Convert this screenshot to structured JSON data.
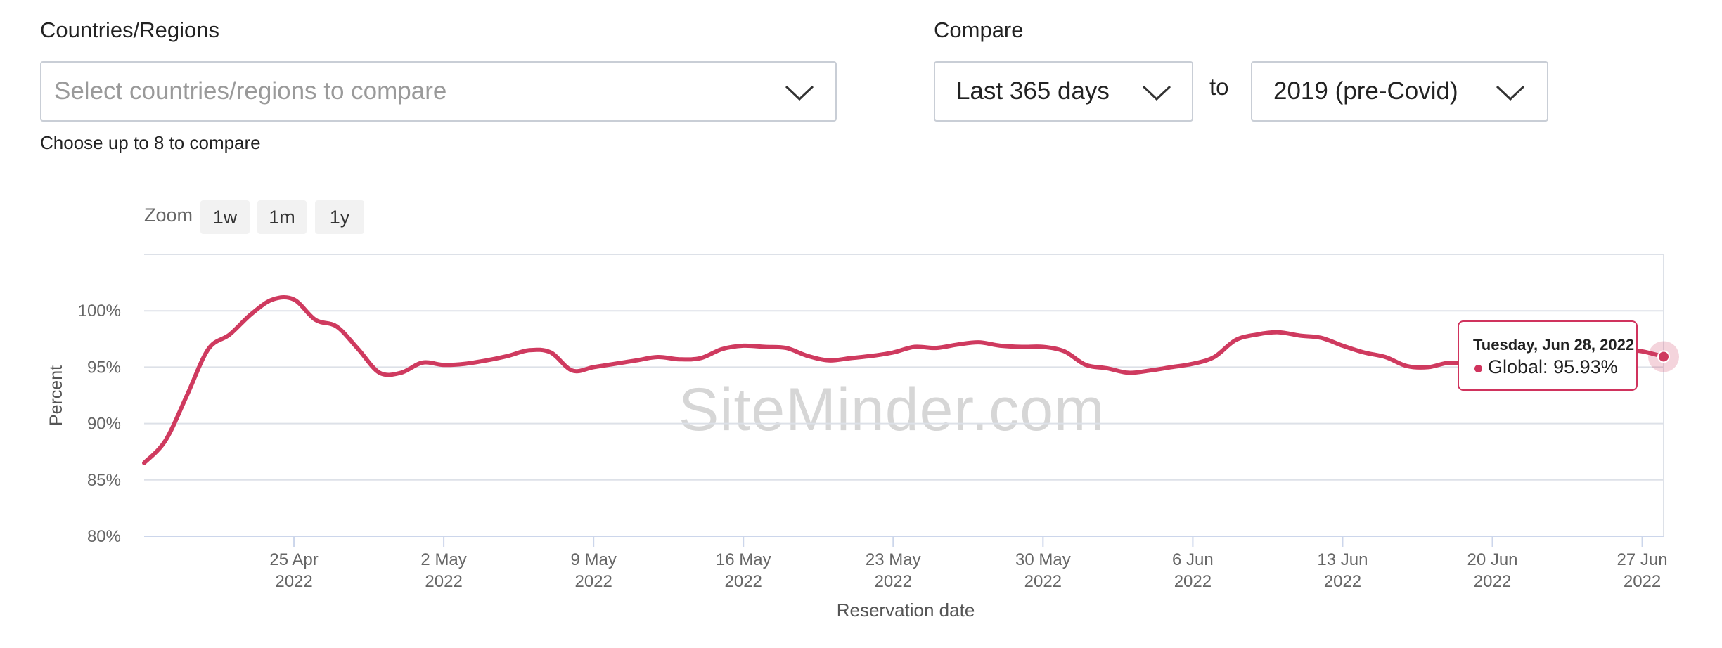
{
  "filters": {
    "countries_label": "Countries/Regions",
    "countries_placeholder": "Select countries/regions to compare",
    "countries_hint": "Choose up to 8 to compare",
    "compare_label": "Compare",
    "compare_from": "Last 365 days",
    "compare_to_word": "to",
    "compare_to": "2019 (pre-Covid)"
  },
  "zoom": {
    "label": "Zoom",
    "options": [
      "1w",
      "1m",
      "1y"
    ]
  },
  "watermark": "SiteMinder.com",
  "tooltip": {
    "date": "Tuesday, Jun 28, 2022",
    "series": "Global",
    "value": "95.93%"
  },
  "colors": {
    "line": "#cf3a5f",
    "grid": "#dde1e8",
    "axis": "#ccd6eb"
  },
  "chart_data": {
    "type": "line",
    "xlabel": "Reservation date",
    "ylabel": "Percent",
    "ylim": [
      80,
      105
    ],
    "yticks": [
      80,
      85,
      90,
      95,
      100
    ],
    "ytick_labels": [
      "80%",
      "85%",
      "90%",
      "95%",
      "100%"
    ],
    "xlim": [
      "2022-04-18",
      "2022-06-28"
    ],
    "xticks": [
      "2022-04-25",
      "2022-05-02",
      "2022-05-09",
      "2022-05-16",
      "2022-05-23",
      "2022-05-30",
      "2022-06-06",
      "2022-06-13",
      "2022-06-20",
      "2022-06-27"
    ],
    "xtick_labels": [
      [
        "25 Apr",
        "2022"
      ],
      [
        "2 May",
        "2022"
      ],
      [
        "9 May",
        "2022"
      ],
      [
        "16 May",
        "2022"
      ],
      [
        "23 May",
        "2022"
      ],
      [
        "30 May",
        "2022"
      ],
      [
        "6 Jun",
        "2022"
      ],
      [
        "13 Jun",
        "2022"
      ],
      [
        "20 Jun",
        "2022"
      ],
      [
        "27 Jun",
        "2022"
      ]
    ],
    "series": [
      {
        "name": "Global",
        "x": [
          "2022-04-18",
          "2022-04-19",
          "2022-04-20",
          "2022-04-21",
          "2022-04-22",
          "2022-04-23",
          "2022-04-24",
          "2022-04-25",
          "2022-04-26",
          "2022-04-27",
          "2022-04-28",
          "2022-04-29",
          "2022-04-30",
          "2022-05-01",
          "2022-05-02",
          "2022-05-03",
          "2022-05-04",
          "2022-05-05",
          "2022-05-06",
          "2022-05-07",
          "2022-05-08",
          "2022-05-09",
          "2022-05-10",
          "2022-05-11",
          "2022-05-12",
          "2022-05-13",
          "2022-05-14",
          "2022-05-15",
          "2022-05-16",
          "2022-05-17",
          "2022-05-18",
          "2022-05-19",
          "2022-05-20",
          "2022-05-21",
          "2022-05-22",
          "2022-05-23",
          "2022-05-24",
          "2022-05-25",
          "2022-05-26",
          "2022-05-27",
          "2022-05-28",
          "2022-05-29",
          "2022-05-30",
          "2022-05-31",
          "2022-06-01",
          "2022-06-02",
          "2022-06-03",
          "2022-06-04",
          "2022-06-05",
          "2022-06-06",
          "2022-06-07",
          "2022-06-08",
          "2022-06-09",
          "2022-06-10",
          "2022-06-11",
          "2022-06-12",
          "2022-06-13",
          "2022-06-14",
          "2022-06-15",
          "2022-06-16",
          "2022-06-17",
          "2022-06-18",
          "2022-06-19",
          "2022-06-20",
          "2022-06-21",
          "2022-06-22",
          "2022-06-23",
          "2022-06-24",
          "2022-06-25",
          "2022-06-26",
          "2022-06-27",
          "2022-06-28"
        ],
        "values": [
          86.5,
          88.5,
          92.5,
          96.6,
          97.9,
          99.7,
          101.0,
          101.0,
          99.2,
          98.6,
          96.6,
          94.5,
          94.5,
          95.4,
          95.2,
          95.3,
          95.6,
          96.0,
          96.5,
          96.3,
          94.7,
          95.0,
          95.3,
          95.6,
          95.9,
          95.7,
          95.8,
          96.6,
          96.9,
          96.8,
          96.7,
          96.0,
          95.6,
          95.8,
          96.0,
          96.3,
          96.8,
          96.7,
          97.0,
          97.2,
          96.9,
          96.8,
          96.8,
          96.4,
          95.2,
          94.9,
          94.5,
          94.7,
          95.0,
          95.3,
          95.9,
          97.4,
          97.9,
          98.1,
          97.8,
          97.6,
          96.9,
          96.3,
          95.9,
          95.1,
          95.0,
          95.4,
          95.2,
          95.6,
          96.0,
          96.2,
          96.3,
          96.4,
          96.5,
          96.6,
          96.4,
          95.93
        ]
      }
    ]
  }
}
